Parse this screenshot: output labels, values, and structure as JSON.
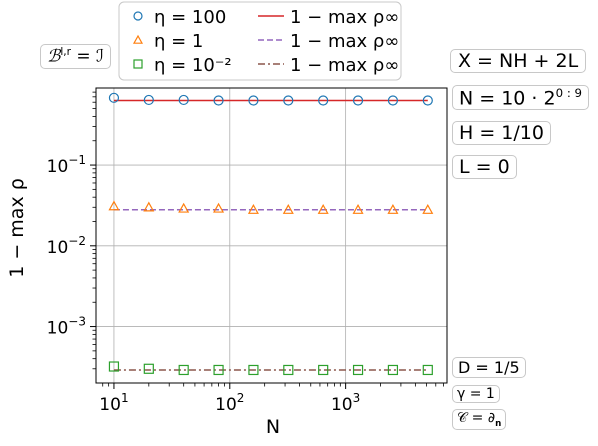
{
  "chart_data": {
    "type": "scatter",
    "xlabel": "N",
    "ylabel": "1 − max ρ",
    "xscale": "log",
    "yscale": "log",
    "xlim": [
      7,
      7500
    ],
    "ylim": [
      0.0002,
      0.9
    ],
    "x_ticks": [
      10,
      100,
      1000
    ],
    "x_tick_labels": [
      {
        "base": "10",
        "exp": "1"
      },
      {
        "base": "10",
        "exp": "2"
      },
      {
        "base": "10",
        "exp": "3"
      }
    ],
    "y_ticks": [
      0.001,
      0.01,
      0.1
    ],
    "y_tick_labels": [
      {
        "base": "10",
        "exp": "−3"
      },
      {
        "base": "10",
        "exp": "−2"
      },
      {
        "base": "10",
        "exp": "−1"
      }
    ],
    "grid": true,
    "x": [
      10,
      20,
      40,
      80,
      160,
      320,
      640,
      1280,
      2560,
      5120
    ],
    "series": [
      {
        "name": "η = 100",
        "marker": "circle",
        "color": "#1f77b4",
        "values": [
          0.68,
          0.64,
          0.64,
          0.63,
          0.63,
          0.63,
          0.63,
          0.63,
          0.63,
          0.63
        ]
      },
      {
        "name": "η = 1",
        "marker": "triangle",
        "color": "#ff7f0e",
        "values": [
          0.031,
          0.03,
          0.029,
          0.029,
          0.028,
          0.028,
          0.028,
          0.028,
          0.028,
          0.028
        ]
      },
      {
        "name": "η = 10⁻²",
        "marker": "square",
        "color": "#2ca02c",
        "values": [
          0.00032,
          0.0003,
          0.00029,
          0.00029,
          0.00029,
          0.00029,
          0.00029,
          0.00029,
          0.00029,
          0.00029
        ]
      }
    ],
    "reference_lines": [
      {
        "name": "1 − max ρ∞",
        "style": "solid",
        "color": "#d62728",
        "value": 0.63
      },
      {
        "name": "1 − max ρ∞",
        "style": "dashed",
        "color": "#9467bd",
        "value": 0.028
      },
      {
        "name": "1 − max ρ∞",
        "style": "dashdot",
        "color": "#8c564b",
        "value": 0.00029
      }
    ],
    "legend": {
      "placement": "top",
      "entries": [
        {
          "label": "η = 100",
          "kind": "marker",
          "marker": "circle",
          "color": "#1f77b4"
        },
        {
          "label": "1 − max ρ∞",
          "kind": "line",
          "style": "solid",
          "color": "#d62728"
        },
        {
          "label": "η = 1",
          "kind": "marker",
          "marker": "triangle",
          "color": "#ff7f0e"
        },
        {
          "label": "1 − max ρ∞",
          "kind": "line",
          "style": "dashed",
          "color": "#9467bd"
        },
        {
          "label": "η = 10⁻²",
          "kind": "marker",
          "marker": "square",
          "color": "#2ca02c"
        },
        {
          "label": "1 − max ρ∞",
          "kind": "line",
          "style": "dashdot",
          "color": "#8c564b"
        }
      ]
    }
  },
  "annotations": {
    "boundary": "ℬ",
    "boundary_sup": "l,r",
    "boundary_eq": " = ℐ",
    "x_def": "X = NH + 2L",
    "n_def_base": "N = 10 · 2",
    "n_def_exp": "0 : 9",
    "h_def": "H = 1/10",
    "l_def": "L = 0",
    "d_def": "D = 1/5",
    "gamma_def": "γ = 1",
    "c_def": "𝒞 = ∂",
    "c_sub": "n"
  }
}
